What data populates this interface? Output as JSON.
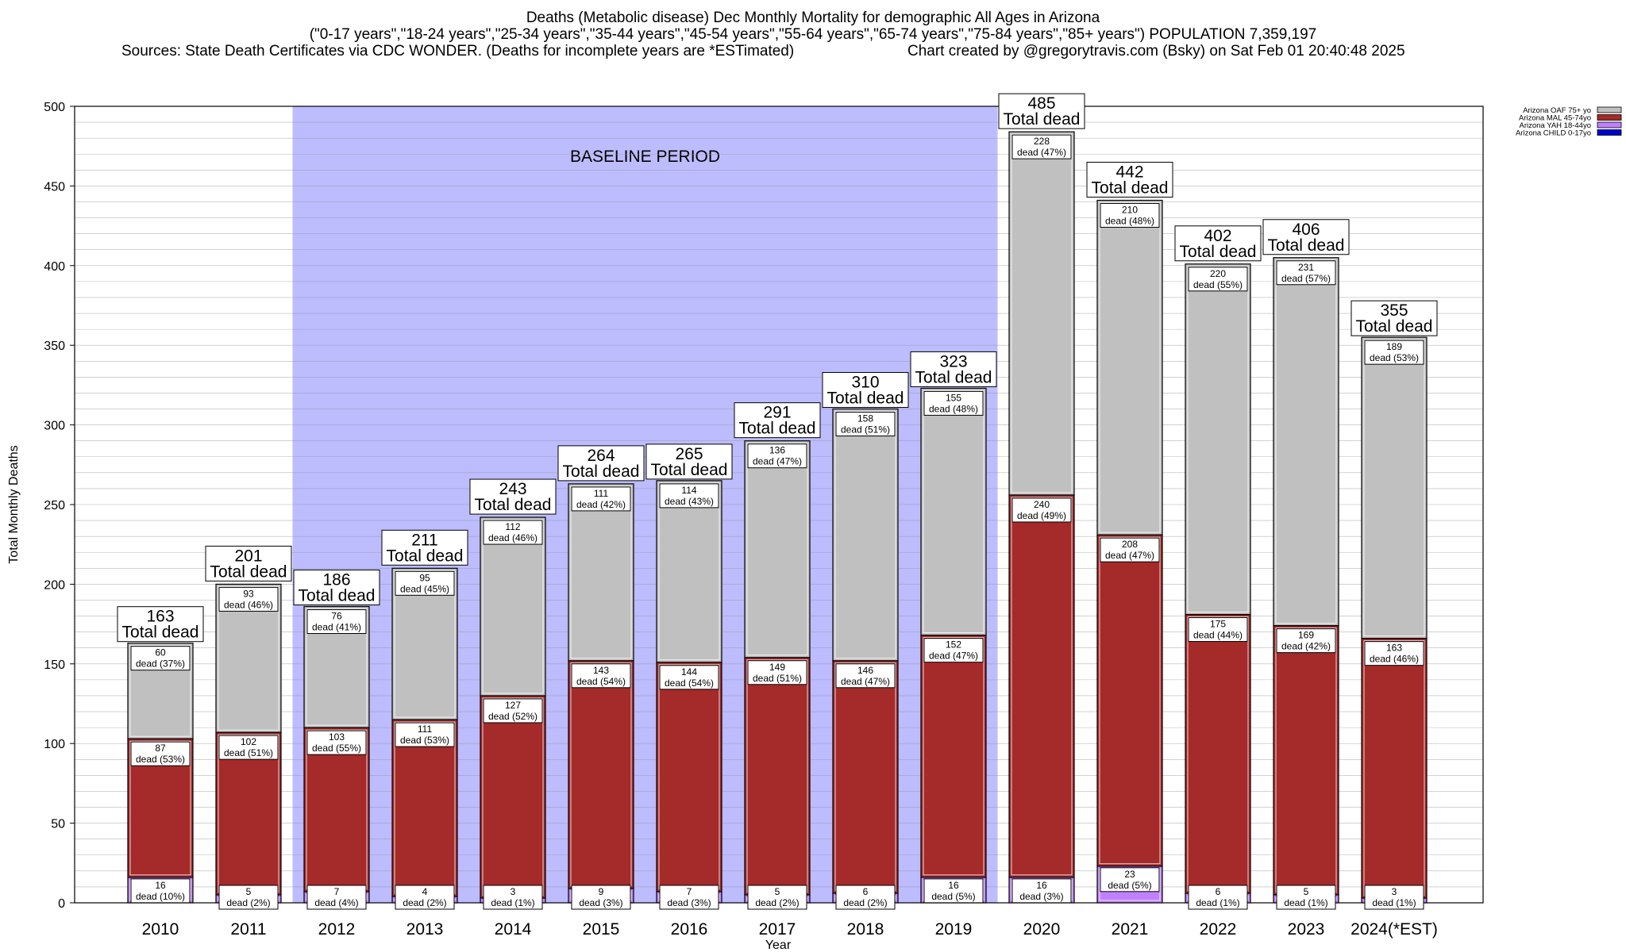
{
  "header": {
    "title": "Deaths (Metabolic disease) Dec Monthly Mortality for demographic All Ages in Arizona",
    "subtitle": "(\"0-17 years\",\"18-24 years\",\"25-34 years\",\"35-44 years\",\"45-54 years\",\"55-64 years\",\"65-74 years\",\"75-84 years\",\"85+ years\") POPULATION 7,359,197",
    "sources": "Sources: State Death Certificates via CDC WONDER. (Deaths for incomplete years are *ESTimated)",
    "credit": "Chart created by @gregorytravis.com (Bsky) on Sat Feb 01 20:40:48 2025"
  },
  "chart_data": {
    "type": "bar",
    "stacked": true,
    "xlabel": "Year",
    "ylabel": "Total Monthly Deaths",
    "ylim": [
      0,
      500
    ],
    "yticks": [
      0,
      50,
      100,
      150,
      200,
      250,
      300,
      350,
      400,
      450,
      500
    ],
    "minor_grid_step": 10,
    "grid": true,
    "legend_position": "top-right",
    "categories": [
      "2010",
      "2011",
      "2012",
      "2013",
      "2014",
      "2015",
      "2016",
      "2017",
      "2018",
      "2019",
      "2020",
      "2021",
      "2022",
      "2023",
      "2024(*EST)"
    ],
    "series": [
      {
        "name": "Arizona CHILD 0-17yo",
        "color": "#0000cc",
        "values": [
          0,
          0,
          0,
          0,
          0,
          0,
          0,
          0,
          0,
          0,
          0,
          0,
          0,
          0,
          0
        ]
      },
      {
        "name": "Arizona YAH 18-44yo",
        "color": "#c080ff",
        "values": [
          16,
          5,
          7,
          4,
          3,
          9,
          7,
          5,
          6,
          16,
          16,
          23,
          6,
          5,
          3
        ],
        "pct": [
          "10%",
          "2%",
          "4%",
          "2%",
          "1%",
          "3%",
          "3%",
          "2%",
          "2%",
          "5%",
          "3%",
          "5%",
          "1%",
          "1%",
          "1%"
        ]
      },
      {
        "name": "Arizona MAL 45-74yo",
        "color": "#a52a2a",
        "values": [
          87,
          102,
          103,
          111,
          127,
          143,
          144,
          149,
          146,
          152,
          240,
          208,
          175,
          169,
          163
        ],
        "pct": [
          "53%",
          "51%",
          "55%",
          "53%",
          "52%",
          "54%",
          "54%",
          "51%",
          "47%",
          "47%",
          "49%",
          "47%",
          "44%",
          "42%",
          "46%"
        ]
      },
      {
        "name": "Arizona OAF 75+ yo",
        "color": "#c0c0c0",
        "values": [
          60,
          93,
          76,
          95,
          112,
          111,
          114,
          136,
          158,
          155,
          228,
          210,
          220,
          231,
          189
        ],
        "pct": [
          "37%",
          "46%",
          "41%",
          "45%",
          "46%",
          "42%",
          "43%",
          "47%",
          "51%",
          "48%",
          "47%",
          "48%",
          "55%",
          "57%",
          "53%"
        ]
      }
    ],
    "totals": [
      163,
      201,
      186,
      211,
      243,
      264,
      265,
      291,
      310,
      323,
      485,
      442,
      402,
      406,
      355
    ],
    "total_label": "Total dead",
    "segment_label": "dead",
    "baseline": {
      "label": "BASELINE PERIOD",
      "from": "2012",
      "to": "2019",
      "color": "#bcbcff"
    }
  }
}
